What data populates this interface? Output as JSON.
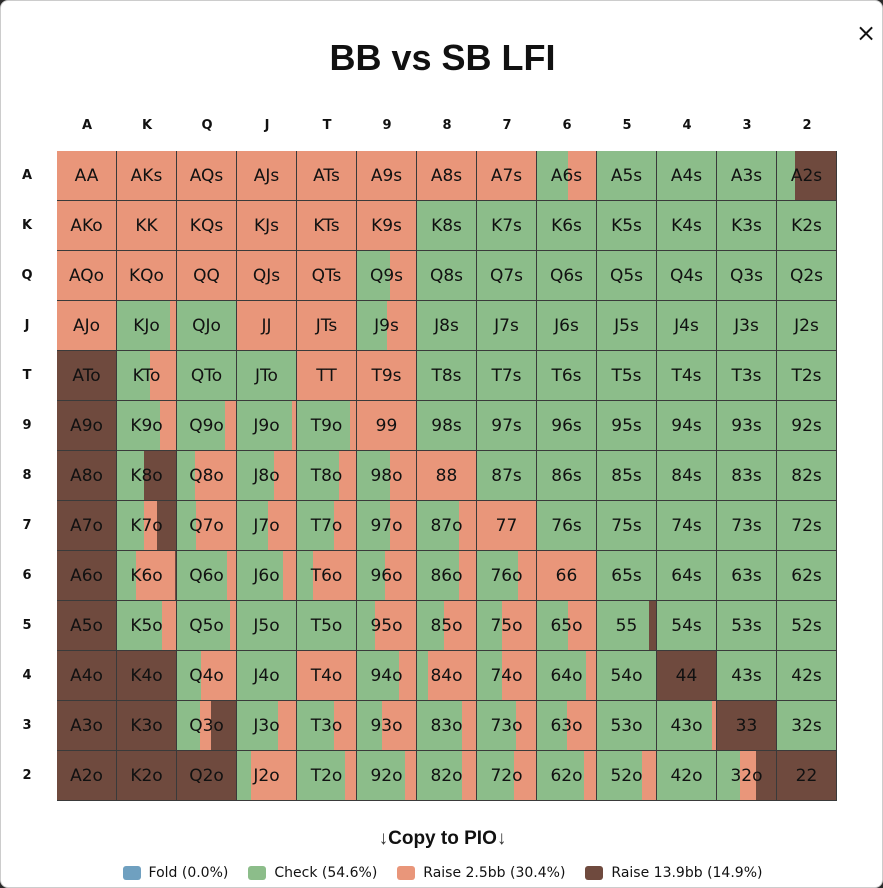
{
  "title": "BB vs SB LFI",
  "close_icon": "×",
  "ranks": [
    "A",
    "K",
    "Q",
    "J",
    "T",
    "9",
    "8",
    "7",
    "6",
    "5",
    "4",
    "3",
    "2"
  ],
  "colors": {
    "fold": "#6fa0c0",
    "check": "#8cbd8a",
    "raise_small": "#e9967a",
    "raise_big": "#6f4a3e"
  },
  "copy_button": {
    "arrow_left": "↓",
    "label": "Copy to PIO",
    "arrow_right": "↓"
  },
  "legend": [
    {
      "key": "fold",
      "label": "Fold (0.0%)"
    },
    {
      "key": "check",
      "label": "Check (54.6%)"
    },
    {
      "key": "raise_small",
      "label": "Raise 2.5bb (30.4%)"
    },
    {
      "key": "raise_big",
      "label": "Raise 13.9bb (14.9%)"
    }
  ],
  "grid": [
    [
      [
        "AA",
        0,
        1,
        0
      ],
      [
        "AKs",
        0,
        1,
        0
      ],
      [
        "AQs",
        0,
        1,
        0
      ],
      [
        "AJs",
        0,
        1,
        0
      ],
      [
        "ATs",
        0,
        1,
        0
      ],
      [
        "A9s",
        0,
        1,
        0
      ],
      [
        "A8s",
        0,
        1,
        0
      ],
      [
        "A7s",
        0,
        1,
        0
      ],
      [
        "A6s",
        0.53,
        0.47,
        0
      ],
      [
        "A5s",
        1,
        0,
        0
      ],
      [
        "A4s",
        1,
        0,
        0
      ],
      [
        "A3s",
        1,
        0,
        0
      ],
      [
        "A2s",
        0.3,
        0,
        0.7
      ]
    ],
    [
      [
        "AKo",
        0,
        1,
        0
      ],
      [
        "KK",
        0,
        1,
        0
      ],
      [
        "KQs",
        0,
        1,
        0
      ],
      [
        "KJs",
        0,
        1,
        0
      ],
      [
        "KTs",
        0,
        1,
        0
      ],
      [
        "K9s",
        0,
        1,
        0
      ],
      [
        "K8s",
        1,
        0,
        0
      ],
      [
        "K7s",
        1,
        0,
        0
      ],
      [
        "K6s",
        1,
        0,
        0
      ],
      [
        "K5s",
        1,
        0,
        0
      ],
      [
        "K4s",
        1,
        0,
        0
      ],
      [
        "K3s",
        1,
        0,
        0
      ],
      [
        "K2s",
        1,
        0,
        0
      ]
    ],
    [
      [
        "AQo",
        0,
        1,
        0
      ],
      [
        "KQo",
        0,
        1,
        0
      ],
      [
        "QQ",
        0,
        1,
        0
      ],
      [
        "QJs",
        0,
        1,
        0
      ],
      [
        "QTs",
        0,
        1,
        0
      ],
      [
        "Q9s",
        0.56,
        0.44,
        0
      ],
      [
        "Q8s",
        1,
        0,
        0
      ],
      [
        "Q7s",
        1,
        0,
        0
      ],
      [
        "Q6s",
        1,
        0,
        0
      ],
      [
        "Q5s",
        1,
        0,
        0
      ],
      [
        "Q4s",
        1,
        0,
        0
      ],
      [
        "Q3s",
        1,
        0,
        0
      ],
      [
        "Q2s",
        1,
        0,
        0
      ]
    ],
    [
      [
        "AJo",
        0,
        1,
        0
      ],
      [
        "KJo",
        0.89,
        0.11,
        0
      ],
      [
        "QJo",
        1,
        0,
        0
      ],
      [
        "JJ",
        0,
        1,
        0
      ],
      [
        "JTs",
        0,
        1,
        0
      ],
      [
        "J9s",
        0.5,
        0.5,
        0
      ],
      [
        "J8s",
        1,
        0,
        0
      ],
      [
        "J7s",
        1,
        0,
        0
      ],
      [
        "J6s",
        1,
        0,
        0
      ],
      [
        "J5s",
        1,
        0,
        0
      ],
      [
        "J4s",
        1,
        0,
        0
      ],
      [
        "J3s",
        1,
        0,
        0
      ],
      [
        "J2s",
        1,
        0,
        0
      ]
    ],
    [
      [
        "ATo",
        0,
        0,
        1
      ],
      [
        "KTo",
        0.56,
        0.44,
        0
      ],
      [
        "QTo",
        1,
        0,
        0
      ],
      [
        "JTo",
        1,
        0,
        0
      ],
      [
        "TT",
        0,
        1,
        0
      ],
      [
        "T9s",
        0,
        1,
        0
      ],
      [
        "T8s",
        1,
        0,
        0
      ],
      [
        "T7s",
        1,
        0,
        0
      ],
      [
        "T6s",
        1,
        0,
        0
      ],
      [
        "T5s",
        1,
        0,
        0
      ],
      [
        "T4s",
        1,
        0,
        0
      ],
      [
        "T3s",
        1,
        0,
        0
      ],
      [
        "T2s",
        1,
        0,
        0
      ]
    ],
    [
      [
        "A9o",
        0,
        0,
        1
      ],
      [
        "K9o",
        0.73,
        0.27,
        0
      ],
      [
        "Q9o",
        0.82,
        0.18,
        0
      ],
      [
        "J9o",
        0.93,
        0.07,
        0
      ],
      [
        "T9o",
        0.9,
        0.1,
        0
      ],
      [
        "99",
        0,
        1,
        0
      ],
      [
        "98s",
        1,
        0,
        0
      ],
      [
        "97s",
        1,
        0,
        0
      ],
      [
        "96s",
        1,
        0,
        0
      ],
      [
        "95s",
        1,
        0,
        0
      ],
      [
        "94s",
        1,
        0,
        0
      ],
      [
        "93s",
        1,
        0,
        0
      ],
      [
        "92s",
        1,
        0,
        0
      ]
    ],
    [
      [
        "A8o",
        0,
        0,
        1
      ],
      [
        "K8o",
        0.46,
        0,
        0.54
      ],
      [
        "Q8o",
        0.3,
        0.7,
        0
      ],
      [
        "J8o",
        0.62,
        0.38,
        0
      ],
      [
        "T8o",
        0.72,
        0.28,
        0
      ],
      [
        "98o",
        0.56,
        0.44,
        0
      ],
      [
        "88",
        0,
        1,
        0
      ],
      [
        "87s",
        1,
        0,
        0
      ],
      [
        "86s",
        1,
        0,
        0
      ],
      [
        "85s",
        1,
        0,
        0
      ],
      [
        "84s",
        1,
        0,
        0
      ],
      [
        "83s",
        1,
        0,
        0
      ],
      [
        "82s",
        1,
        0,
        0
      ]
    ],
    [
      [
        "A7o",
        0,
        0,
        1
      ],
      [
        "K7o",
        0.46,
        0.22,
        0.32
      ],
      [
        "Q7o",
        0.32,
        0.68,
        0
      ],
      [
        "J7o",
        0.53,
        0.47,
        0
      ],
      [
        "T7o",
        0.63,
        0.37,
        0
      ],
      [
        "97o",
        0.56,
        0.44,
        0
      ],
      [
        "87o",
        0.72,
        0.28,
        0
      ],
      [
        "77",
        0,
        1,
        0
      ],
      [
        "76s",
        1,
        0,
        0
      ],
      [
        "75s",
        1,
        0,
        0
      ],
      [
        "74s",
        1,
        0,
        0
      ],
      [
        "73s",
        1,
        0,
        0
      ],
      [
        "72s",
        1,
        0,
        0
      ]
    ],
    [
      [
        "A6o",
        0,
        0,
        1
      ],
      [
        "K6o",
        0.33,
        0.65,
        0.02
      ],
      [
        "Q6o",
        0.85,
        0.15,
        0
      ],
      [
        "J6o",
        0.78,
        0.22,
        0
      ],
      [
        "T6o",
        0.27,
        0.73,
        0
      ],
      [
        "96o",
        0.48,
        0.52,
        0
      ],
      [
        "86o",
        0.72,
        0.28,
        0
      ],
      [
        "76o",
        0.69,
        0.31,
        0
      ],
      [
        "66",
        0,
        1,
        0
      ],
      [
        "65s",
        1,
        0,
        0
      ],
      [
        "64s",
        1,
        0,
        0
      ],
      [
        "63s",
        1,
        0,
        0
      ],
      [
        "62s",
        1,
        0,
        0
      ]
    ],
    [
      [
        "A5o",
        0,
        0,
        1
      ],
      [
        "K5o",
        0.77,
        0.23,
        0
      ],
      [
        "Q5o",
        0.9,
        0.1,
        0
      ],
      [
        "J5o",
        1,
        0,
        0
      ],
      [
        "T5o",
        1,
        0,
        0
      ],
      [
        "95o",
        0.3,
        0.7,
        0
      ],
      [
        "85o",
        0.46,
        0.54,
        0
      ],
      [
        "75o",
        0.42,
        0.58,
        0
      ],
      [
        "65o",
        0.52,
        0.48,
        0
      ],
      [
        "55",
        0.88,
        0,
        0.12
      ],
      [
        "54s",
        1,
        0,
        0
      ],
      [
        "53s",
        1,
        0,
        0
      ],
      [
        "52s",
        1,
        0,
        0
      ]
    ],
    [
      [
        "A4o",
        0,
        0,
        1
      ],
      [
        "K4o",
        0,
        0,
        1
      ],
      [
        "Q4o",
        0.4,
        0.6,
        0
      ],
      [
        "J4o",
        1,
        0,
        0
      ],
      [
        "T4o",
        0,
        1,
        0
      ],
      [
        "94o",
        0.72,
        0.28,
        0
      ],
      [
        "84o",
        0.19,
        0.81,
        0
      ],
      [
        "74o",
        0.43,
        0.57,
        0
      ],
      [
        "64o",
        0.83,
        0.17,
        0
      ],
      [
        "54o",
        1,
        0,
        0
      ],
      [
        "44",
        0,
        0,
        1
      ],
      [
        "43s",
        1,
        0,
        0
      ],
      [
        "42s",
        1,
        0,
        0
      ]
    ],
    [
      [
        "A3o",
        0,
        0,
        1
      ],
      [
        "K3o",
        0,
        0,
        1
      ],
      [
        "Q3o",
        0.39,
        0.19,
        0.42
      ],
      [
        "J3o",
        0.7,
        0.3,
        0
      ],
      [
        "T3o",
        0.63,
        0.37,
        0
      ],
      [
        "93o",
        0.42,
        0.58,
        0
      ],
      [
        "83o",
        0.77,
        0.23,
        0
      ],
      [
        "73o",
        0.66,
        0.34,
        0
      ],
      [
        "63o",
        0.5,
        0.5,
        0
      ],
      [
        "53o",
        1,
        0,
        0
      ],
      [
        "43o",
        0.93,
        0.07,
        0
      ],
      [
        "33",
        0,
        0,
        1
      ],
      [
        "32s",
        1,
        0,
        0
      ]
    ],
    [
      [
        "A2o",
        0,
        0,
        1
      ],
      [
        "K2o",
        0,
        0,
        1
      ],
      [
        "Q2o",
        0,
        0,
        1
      ],
      [
        "J2o",
        0.23,
        0.77,
        0
      ],
      [
        "T2o",
        0.82,
        0.18,
        0
      ],
      [
        "92o",
        0.82,
        0.18,
        0
      ],
      [
        "82o",
        0.77,
        0.23,
        0
      ],
      [
        "72o",
        0.63,
        0.37,
        0
      ],
      [
        "62o",
        0.8,
        0.2,
        0
      ],
      [
        "52o",
        0.76,
        0.24,
        0
      ],
      [
        "42o",
        1,
        0,
        0
      ],
      [
        "32o",
        0.39,
        0.27,
        0.34
      ],
      [
        "22",
        0,
        0,
        1
      ]
    ]
  ]
}
